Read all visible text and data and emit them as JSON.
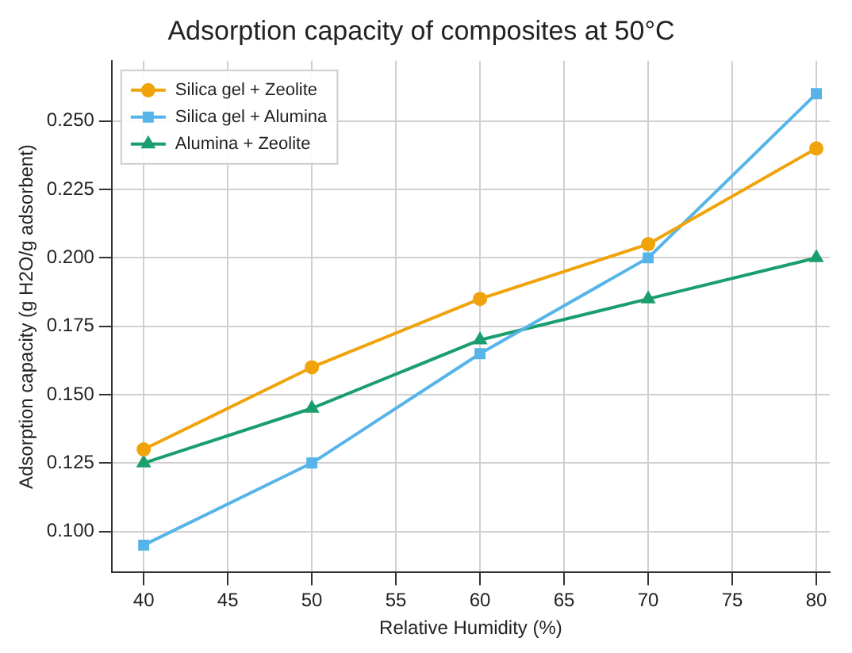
{
  "chart_data": {
    "type": "line",
    "title": "Adsorption capacity of composites at 50°C",
    "xlabel": "Relative Humidity (%)",
    "ylabel": "Adsorption capacity (g H2O/g adsorbent)",
    "x": [
      40,
      50,
      60,
      70,
      80
    ],
    "series": [
      {
        "name": "Silica gel + Zeolite",
        "color": "#f0a30a",
        "marker": "circle",
        "values": [
          0.13,
          0.16,
          0.185,
          0.205,
          0.24
        ]
      },
      {
        "name": "Silica gel + Alumina",
        "color": "#56b4e9",
        "marker": "square",
        "values": [
          0.095,
          0.125,
          0.165,
          0.2,
          0.26
        ]
      },
      {
        "name": "Alumina + Zeolite",
        "color": "#1a9e6e",
        "marker": "triangle",
        "values": [
          0.125,
          0.145,
          0.17,
          0.185,
          0.2
        ]
      }
    ],
    "xlim": [
      38.1,
      80.8
    ],
    "xticks": [
      40,
      45,
      50,
      55,
      60,
      65,
      70,
      75,
      80
    ],
    "ylim": [
      0.085,
      0.272
    ],
    "yticks": [
      {
        "value": 0.1,
        "label": "0.100"
      },
      {
        "value": 0.125,
        "label": "0.125"
      },
      {
        "value": 0.15,
        "label": "0.150"
      },
      {
        "value": 0.175,
        "label": "0.175"
      },
      {
        "value": 0.2,
        "label": "0.200"
      },
      {
        "value": 0.225,
        "label": "0.225"
      },
      {
        "value": 0.25,
        "label": "0.250"
      }
    ],
    "grid": true,
    "legend": "top left",
    "line_style": "solid"
  }
}
